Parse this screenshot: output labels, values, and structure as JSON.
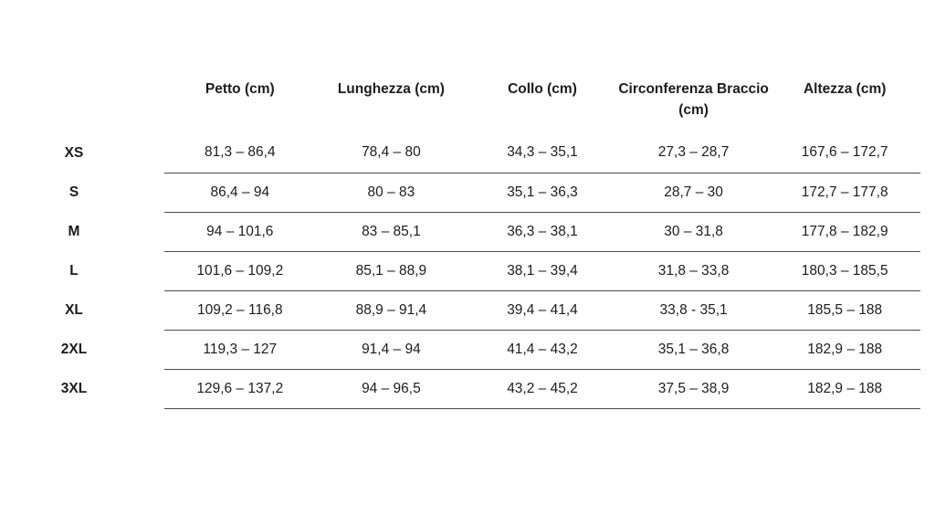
{
  "table": {
    "row_header_label": "",
    "columns": [
      {
        "label": "Petto (cm)"
      },
      {
        "label": "Lunghezza (cm)"
      },
      {
        "label": "Collo (cm)"
      },
      {
        "label": "Circonferenza Braccio (cm)"
      },
      {
        "label": "Altezza (cm)"
      }
    ],
    "rows": [
      {
        "size": "XS",
        "values": [
          "81,3 – 86,4",
          "78,4 – 80",
          "34,3 – 35,1",
          "27,3 – 28,7",
          "167,6 – 172,7"
        ]
      },
      {
        "size": "S",
        "values": [
          "86,4 – 94",
          "80 – 83",
          "35,1 – 36,3",
          "28,7 – 30",
          "172,7 – 177,8"
        ]
      },
      {
        "size": "M",
        "values": [
          "94 – 101,6",
          "83 – 85,1",
          "36,3 – 38,1",
          "30 – 31,8",
          "177,8 – 182,9"
        ]
      },
      {
        "size": "L",
        "values": [
          "101,6 – 109,2",
          "85,1 – 88,9",
          "38,1 – 39,4",
          "31,8 – 33,8",
          "180,3 – 185,5"
        ]
      },
      {
        "size": "XL",
        "values": [
          "109,2 – 116,8",
          "88,9 – 91,4",
          "39,4 – 41,4",
          "33,8 - 35,1",
          "185,5 – 188"
        ]
      },
      {
        "size": "2XL",
        "values": [
          "119,3 – 127",
          "91,4 – 94",
          "41,4 – 43,2",
          "35,1 – 36,8",
          "182,9 – 188"
        ]
      },
      {
        "size": "3XL",
        "values": [
          "129,6 – 137,2",
          "94 – 96,5",
          "43,2 – 45,2",
          "37,5 – 38,9",
          "182,9 – 188"
        ]
      }
    ],
    "colors": {
      "text": "#1c1c1c",
      "rule": "#4a4a4a",
      "background": "#ffffff"
    }
  }
}
